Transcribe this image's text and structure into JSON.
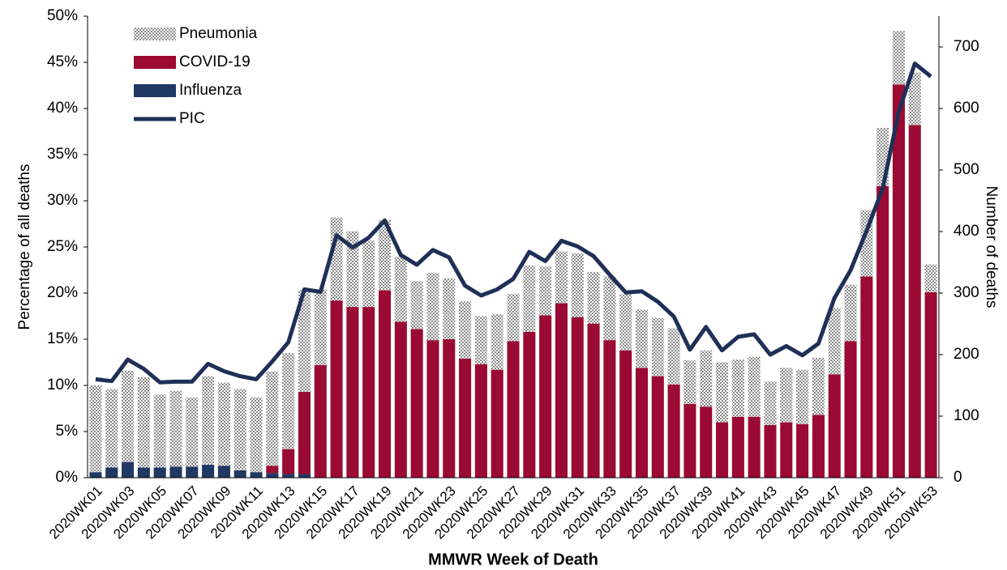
{
  "chart_data": {
    "type": "stacked-bar-line",
    "x_label": "MMWR Week of Death",
    "y_label": "Percentage of all deaths",
    "y2_label": "Number of deaths",
    "legend": "upper left",
    "categories": [
      "2020WK01",
      null,
      "2020WK03",
      null,
      "2020WK05",
      null,
      "2020WK07",
      null,
      "2020WK09",
      null,
      "2020WK11",
      null,
      "2020WK13",
      null,
      "2020WK15",
      null,
      "2020WK17",
      null,
      "2020WK19",
      null,
      "2020WK21",
      null,
      "2020WK23",
      null,
      "2020WK25",
      null,
      "2020WK27",
      null,
      "2020WK29",
      null,
      "2020WK31",
      null,
      "2020WK33",
      null,
      "2020WK35",
      null,
      "2020WK37",
      null,
      "2020WK39",
      null,
      "2020WK41",
      null,
      "2020WK43",
      null,
      "2020WK45",
      null,
      "2020WK47",
      null,
      "2020WK49",
      null,
      "2020WK51",
      null,
      "2020WK53"
    ],
    "ylim": [
      0,
      50
    ],
    "yticks": [
      {
        "value": 0,
        "label": "0%"
      },
      {
        "value": 5,
        "label": "5%"
      },
      {
        "value": 10,
        "label": "10%"
      },
      {
        "value": 15,
        "label": "15%"
      },
      {
        "value": 20,
        "label": "20%"
      },
      {
        "value": 25,
        "label": "25%"
      },
      {
        "value": 30,
        "label": "30%"
      },
      {
        "value": 35,
        "label": "35%"
      },
      {
        "value": 40,
        "label": "40%"
      },
      {
        "value": 45,
        "label": "45%"
      },
      {
        "value": 50,
        "label": "50%"
      }
    ],
    "y2lim": [
      0,
      750
    ],
    "y2ticks": [
      0,
      100,
      200,
      300,
      400,
      500,
      600,
      700
    ],
    "series": [
      {
        "name": "Pneumonia",
        "kind": "bar",
        "color": "#8c8c8c",
        "values": [
          9.4,
          8.5,
          9.9,
          9.8,
          7.9,
          8.2,
          7.5,
          9.6,
          9.0,
          8.8,
          8.1,
          10.2,
          10.4,
          11.0,
          8.2,
          9.0,
          8.2,
          7.2,
          7.6,
          7.0,
          5.2,
          7.3,
          6.6,
          6.2,
          5.2,
          6.0,
          5.1,
          7.2,
          5.3,
          5.6,
          6.9,
          5.6,
          6.9,
          6.1,
          6.3,
          6.3,
          6.1,
          4.7,
          6.1,
          6.5,
          6.2,
          6.5,
          4.7,
          5.9,
          5.9,
          6.2,
          7.2,
          6.1,
          7.2,
          6.3,
          5.8,
          5.7,
          3.0
        ]
      },
      {
        "name": "COVID-19",
        "kind": "bar",
        "color": "#9b0a32",
        "values": [
          0,
          0,
          0,
          0,
          0,
          0,
          0,
          0,
          0,
          0,
          0,
          0.8,
          2.7,
          8.9,
          12.2,
          19.2,
          18.5,
          18.5,
          20.3,
          16.9,
          16.1,
          14.9,
          15.0,
          12.9,
          12.3,
          11.7,
          14.8,
          15.8,
          17.6,
          18.9,
          17.4,
          16.7,
          14.9,
          13.8,
          11.9,
          11.0,
          10.1,
          8.0,
          7.7,
          6.0,
          6.6,
          6.6,
          5.7,
          6.0,
          5.8,
          6.8,
          11.2,
          14.8,
          21.8,
          31.6,
          42.6,
          38.2,
          20.1
        ]
      },
      {
        "name": "Influenza",
        "kind": "bar",
        "color": "#1f3864",
        "values": [
          0.6,
          1.1,
          1.7,
          1.1,
          1.1,
          1.2,
          1.2,
          1.4,
          1.3,
          0.8,
          0.6,
          0.5,
          0.4,
          0.4,
          0,
          0,
          0,
          0,
          0,
          0,
          0,
          0,
          0,
          0,
          0,
          0,
          0,
          0,
          0,
          0,
          0,
          0,
          0,
          0,
          0,
          0,
          0,
          0,
          0,
          0,
          0,
          0,
          0,
          0,
          0,
          0,
          0,
          0,
          0,
          0,
          0,
          0,
          0
        ]
      },
      {
        "name": "PIC",
        "kind": "line",
        "axis": "y2",
        "color": "#1f3057",
        "values": [
          160,
          157,
          192,
          177,
          155,
          156,
          156,
          185,
          173,
          165,
          160,
          189,
          220,
          306,
          302,
          394,
          374,
          390,
          418,
          362,
          346,
          370,
          358,
          312,
          296,
          306,
          323,
          367,
          352,
          385,
          376,
          360,
          330,
          301,
          303,
          286,
          262,
          208,
          245,
          207,
          229,
          233,
          200,
          214,
          199,
          218,
          292,
          337,
          401,
          470,
          595,
          673,
          652
        ]
      }
    ]
  }
}
